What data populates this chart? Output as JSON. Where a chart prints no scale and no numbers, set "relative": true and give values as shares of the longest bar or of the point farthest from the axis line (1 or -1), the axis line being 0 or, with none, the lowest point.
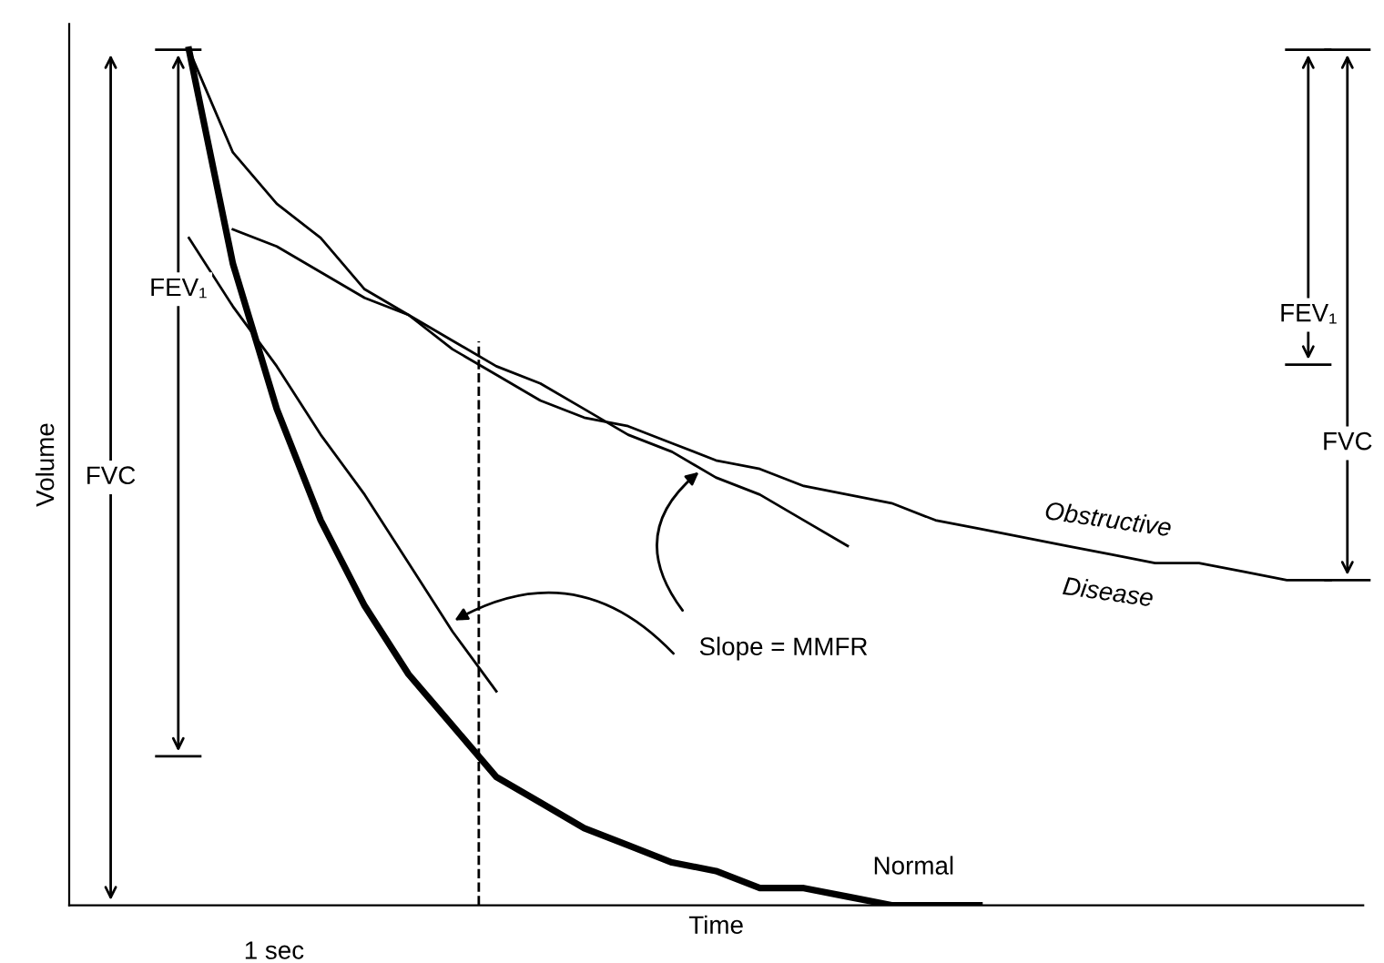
{
  "chart_data": {
    "type": "line",
    "relative": true,
    "xlabel": "Time",
    "ylabel": "Volume",
    "tick_labels": false,
    "marker": "none",
    "categories": [
      null,
      null,
      null,
      null,
      null,
      null,
      null,
      null,
      null,
      null,
      null,
      null,
      null,
      null,
      null,
      null,
      null,
      null,
      null,
      null,
      null,
      null,
      null,
      null,
      null,
      null,
      null
    ],
    "series": [
      {
        "name": "Normal",
        "color": "#000000",
        "values": [
          1.0,
          0.75,
          0.58,
          0.45,
          0.35,
          0.27,
          0.21,
          0.15,
          0.12,
          0.09,
          0.07,
          0.05,
          0.04,
          0.02,
          0.02,
          0.01,
          0.0,
          0.0,
          0.0,
          null,
          null,
          null,
          null,
          null,
          null,
          null,
          null
        ]
      },
      {
        "name": "Obstructive Disease",
        "color": "#000000",
        "values": [
          1.0,
          0.88,
          0.82,
          0.78,
          0.72,
          0.69,
          0.65,
          0.62,
          0.59,
          0.57,
          0.56,
          0.54,
          0.52,
          0.51,
          0.49,
          0.48,
          0.47,
          0.45,
          0.44,
          0.43,
          0.42,
          0.41,
          0.4,
          0.4,
          0.39,
          0.38,
          0.38
        ]
      },
      {
        "color": "#000000",
        "values": [
          0.78,
          0.7,
          0.63,
          0.55,
          0.48,
          0.4,
          0.32,
          0.25,
          null,
          null,
          null,
          null,
          null,
          null,
          null,
          null,
          null,
          null,
          null,
          null,
          null,
          null,
          null,
          null,
          null,
          null,
          null
        ]
      },
      {
        "color": "#000000",
        "values": [
          null,
          0.79,
          0.77,
          0.74,
          0.71,
          0.69,
          0.66,
          0.63,
          0.61,
          0.58,
          0.55,
          0.53,
          0.5,
          0.48,
          0.45,
          0.42,
          null,
          null,
          null,
          null,
          null,
          null,
          null,
          null,
          null,
          null,
          null
        ]
      }
    ],
    "annotations": [
      "FVC",
      "FEV₁",
      "FEV₁",
      "FVC",
      "Slope = MMFR",
      "1 sec"
    ]
  }
}
